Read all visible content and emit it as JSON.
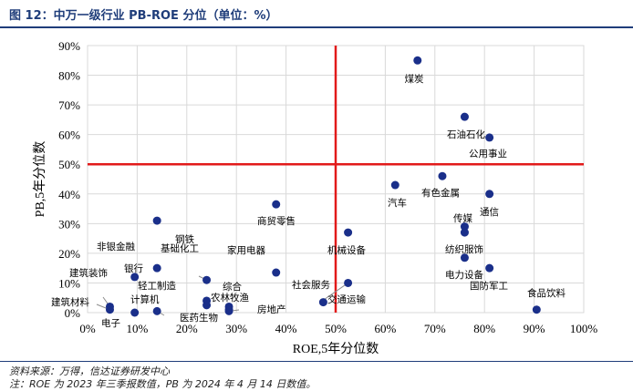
{
  "header": {
    "title": "图 12：中万一级行业 PB-ROE 分位（单位：%）"
  },
  "footer": {
    "source": "资料来源：万得，信达证券研发中心",
    "note": "注：ROE 为 2023 年三季报数值，PB 为 2024 年 4 月 14 日数值。"
  },
  "chart_data": {
    "type": "scatter",
    "xlabel": "ROE,5年分位数",
    "ylabel": "PB,5年分位数",
    "xlim": [
      0,
      100
    ],
    "ylim": [
      0,
      90
    ],
    "x_ticks": [
      "0%",
      "10%",
      "20%",
      "30%",
      "40%",
      "50%",
      "60%",
      "70%",
      "80%",
      "90%",
      "100%"
    ],
    "y_ticks": [
      "0%",
      "10%",
      "20%",
      "30%",
      "40%",
      "50%",
      "60%",
      "70%",
      "80%",
      "90%"
    ],
    "grid": true,
    "reference_lines": {
      "x": 50,
      "y": 50,
      "color": "#e21a1a"
    },
    "marker_color": "#1a2f8a",
    "points": [
      {
        "label": "煤炭",
        "x": 66.5,
        "y": 85
      },
      {
        "label": "石油石化",
        "x": 76,
        "y": 66
      },
      {
        "label": "公用事业",
        "x": 81,
        "y": 59
      },
      {
        "label": "有色金属",
        "x": 71.5,
        "y": 46
      },
      {
        "label": "汽车",
        "x": 62,
        "y": 43
      },
      {
        "label": "通信",
        "x": 81,
        "y": 40
      },
      {
        "label": "传媒",
        "x": 76,
        "y": 29
      },
      {
        "label": "纺织服饰",
        "x": 76,
        "y": 27
      },
      {
        "label": "电力设备",
        "x": 76,
        "y": 18.5
      },
      {
        "label": "国防军工",
        "x": 81,
        "y": 15
      },
      {
        "label": "食品饮料",
        "x": 90.5,
        "y": 1
      },
      {
        "label": "商贸零售",
        "x": 38,
        "y": 36.5
      },
      {
        "label": "机械设备",
        "x": 52.5,
        "y": 27
      },
      {
        "label": "社会服务",
        "x": 52.5,
        "y": 10
      },
      {
        "label": "交通运输",
        "x": 47.5,
        "y": 3.5
      },
      {
        "label": "家用电器",
        "x": 38,
        "y": 13.5
      },
      {
        "label": "房地产",
        "x": 28.5,
        "y": 0.5
      },
      {
        "label": "钢铁",
        "x": 14,
        "y": 31
      },
      {
        "label": "基础化工",
        "x": 24,
        "y": 11
      },
      {
        "label": "非银金融",
        "x": 14,
        "y": 15
      },
      {
        "label": "银行",
        "x": 9.5,
        "y": 12
      },
      {
        "label": "轻工制造",
        "x": 24,
        "y": 4
      },
      {
        "label": "综合",
        "x": 28.5,
        "y": 2
      },
      {
        "label": "农林牧渔",
        "x": 28.5,
        "y": 1
      },
      {
        "label": "计算机",
        "x": 24,
        "y": 2.5
      },
      {
        "label": "医药生物",
        "x": 14,
        "y": 0.5
      },
      {
        "label": "建筑装饰",
        "x": 4.5,
        "y": 2
      },
      {
        "label": "建筑材料",
        "x": 4.5,
        "y": 1
      },
      {
        "label": "电子",
        "x": 9.5,
        "y": 0
      }
    ]
  }
}
